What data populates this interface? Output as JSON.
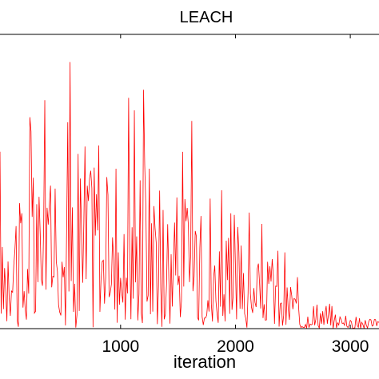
{
  "chart_data": {
    "type": "line",
    "title": "LEACH",
    "xlabel": "iteration",
    "ylabel": "",
    "grid": false,
    "xlim": [
      -50,
      3250
    ],
    "ylim": [
      0,
      8.5
    ],
    "x_ticks": [
      1000,
      2000,
      3000
    ],
    "x_tick_labels": [
      "1000",
      "2000",
      "3000"
    ],
    "series": [
      {
        "color": "#ff0000",
        "sample_step": 10,
        "x": [
          -50,
          3250
        ],
        "envelope": [
          {
            "x": -50,
            "peak": 5.4,
            "level": 1.8
          },
          {
            "x": 100,
            "peak": 6.0,
            "level": 2.2
          },
          {
            "x": 300,
            "peak": 6.8,
            "level": 2.5
          },
          {
            "x": 500,
            "peak": 7.5,
            "level": 2.6
          },
          {
            "x": 700,
            "peak": 6.8,
            "level": 2.6
          },
          {
            "x": 900,
            "peak": 6.5,
            "level": 2.5
          },
          {
            "x": 1100,
            "peak": 6.8,
            "level": 2.5
          },
          {
            "x": 1300,
            "peak": 6.2,
            "level": 2.4
          },
          {
            "x": 1500,
            "peak": 5.8,
            "level": 2.2
          },
          {
            "x": 1700,
            "peak": 5.5,
            "level": 1.9
          },
          {
            "x": 1900,
            "peak": 4.2,
            "level": 1.5
          },
          {
            "x": 2100,
            "peak": 3.6,
            "level": 1.2
          },
          {
            "x": 2300,
            "peak": 2.8,
            "level": 0.9
          },
          {
            "x": 2500,
            "peak": 2.0,
            "level": 0.6
          },
          {
            "x": 2700,
            "peak": 1.1,
            "level": 0.35
          },
          {
            "x": 2900,
            "peak": 0.5,
            "level": 0.22
          },
          {
            "x": 3100,
            "peak": 0.3,
            "level": 0.18
          },
          {
            "x": 3250,
            "peak": 0.25,
            "level": 0.18
          }
        ],
        "spikes": [
          {
            "x": 560,
            "y": 7.7
          },
          {
            "x": 1200,
            "y": 6.9
          },
          {
            "x": 1620,
            "y": 6.0
          },
          {
            "x": 340,
            "y": 6.6
          },
          {
            "x": 1880,
            "y": 4.0
          },
          {
            "x": 2050,
            "y": 2.4
          },
          {
            "x": 2300,
            "y": 1.8
          },
          {
            "x": 2480,
            "y": 1.2
          }
        ]
      }
    ]
  }
}
